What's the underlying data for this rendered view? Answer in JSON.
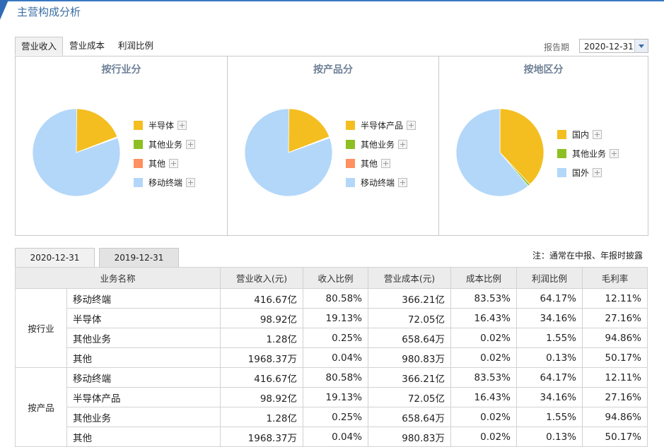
{
  "header": {
    "title": "主营构成分析"
  },
  "tabs": [
    "营业收入",
    "营业成本",
    "利润比例"
  ],
  "report": {
    "label": "报告期",
    "value": "2020-12-31"
  },
  "colors": {
    "yellow": "#f4be21",
    "green": "#8dbf22",
    "orange": "#ff9061",
    "lightblue": "#b3d7f9"
  },
  "panels": [
    {
      "title": "按行业分",
      "legend": [
        {
          "label": "半导体",
          "color": "#f4be21",
          "value": 19.13
        },
        {
          "label": "其他业务",
          "color": "#8dbf22",
          "value": 0.25
        },
        {
          "label": "其他",
          "color": "#ff9061",
          "value": 0.04
        },
        {
          "label": "移动终端",
          "color": "#b3d7f9",
          "value": 80.58
        }
      ]
    },
    {
      "title": "按产品分",
      "legend": [
        {
          "label": "半导体产品",
          "color": "#f4be21",
          "value": 19.13
        },
        {
          "label": "其他业务",
          "color": "#8dbf22",
          "value": 0.25
        },
        {
          "label": "其他",
          "color": "#ff9061",
          "value": 0.04
        },
        {
          "label": "移动终端",
          "color": "#b3d7f9",
          "value": 80.58
        }
      ]
    },
    {
      "title": "按地区分",
      "legend": [
        {
          "label": "国内",
          "color": "#f4be21",
          "value": 38.0
        },
        {
          "label": "其他业务",
          "color": "#8dbf22",
          "value": 0.8
        },
        {
          "label": "国外",
          "color": "#b3d7f9",
          "value": 61.2
        }
      ]
    }
  ],
  "period_tabs": [
    "2020-12-31",
    "2019-12-31"
  ],
  "note": "注：通常在中报、年报时披露",
  "table": {
    "headers": [
      "业务名称",
      "营业收入(元)",
      "收入比例",
      "营业成本(元)",
      "成本比例",
      "利润比例",
      "毛利率"
    ],
    "groups": [
      {
        "name": "按行业",
        "rows": [
          [
            "移动终端",
            "416.67亿",
            "80.58%",
            "366.21亿",
            "83.53%",
            "64.17%",
            "12.11%"
          ],
          [
            "半导体",
            "98.92亿",
            "19.13%",
            "72.05亿",
            "16.43%",
            "34.16%",
            "27.16%"
          ],
          [
            "其他业务",
            "1.28亿",
            "0.25%",
            "658.64万",
            "0.02%",
            "1.55%",
            "94.86%"
          ],
          [
            "其他",
            "1968.37万",
            "0.04%",
            "980.83万",
            "0.02%",
            "0.13%",
            "50.17%"
          ]
        ]
      },
      {
        "name": "按产品",
        "rows": [
          [
            "移动终端",
            "416.67亿",
            "80.58%",
            "366.21亿",
            "83.53%",
            "64.17%",
            "12.11%"
          ],
          [
            "半导体产品",
            "98.92亿",
            "19.13%",
            "72.05亿",
            "16.43%",
            "34.16%",
            "27.16%"
          ],
          [
            "其他业务",
            "1.28亿",
            "0.25%",
            "658.64万",
            "0.02%",
            "1.55%",
            "94.86%"
          ],
          [
            "其他",
            "1968.37万",
            "0.04%",
            "980.83万",
            "0.02%",
            "0.13%",
            "50.17%"
          ]
        ]
      }
    ]
  }
}
